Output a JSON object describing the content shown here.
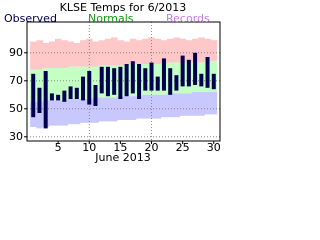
{
  "chart_data": {
    "type": "range",
    "title": "KLSE Temps for 6/2013",
    "x_label": "June 2013",
    "x": [
      1,
      2,
      3,
      4,
      5,
      6,
      7,
      8,
      9,
      10,
      11,
      12,
      13,
      14,
      15,
      16,
      17,
      18,
      19,
      20,
      21,
      22,
      23,
      24,
      25,
      26,
      27,
      28,
      29,
      30
    ],
    "xlim": [
      0,
      31
    ],
    "xticks": [
      5,
      10,
      15,
      20,
      25,
      30
    ],
    "xgrid": [
      10,
      20
    ],
    "ylim": [
      27,
      112
    ],
    "yticks": [
      30,
      50,
      70,
      90
    ],
    "grid": true,
    "series": [
      {
        "name": "Records",
        "legend_color": "#c080e0",
        "color": "#ffc8c8",
        "low_color": "#c8c8ff",
        "high": [
          98,
          99,
          97,
          98,
          100,
          99,
          98,
          97,
          99,
          100,
          98,
          99,
          100,
          101,
          99,
          98,
          100,
          99,
          100,
          101,
          100,
          99,
          100,
          101,
          100,
          99,
          100,
          101,
          100,
          99
        ],
        "low": [
          37,
          36,
          37,
          38,
          38,
          38,
          39,
          39,
          40,
          40,
          40,
          41,
          41,
          41,
          42,
          42,
          42,
          43,
          43,
          43,
          43,
          44,
          44,
          44,
          45,
          45,
          45,
          45,
          46,
          46
        ]
      },
      {
        "name": "Normals",
        "legend_color": "#1a9a1a",
        "color": "#c4ffc4",
        "high": [
          78,
          78,
          79,
          79,
          79,
          79,
          80,
          80,
          80,
          80,
          80,
          81,
          81,
          81,
          81,
          81,
          82,
          82,
          82,
          82,
          82,
          82,
          83,
          83,
          83,
          83,
          83,
          83,
          84,
          84
        ],
        "low": [
          55,
          55,
          56,
          56,
          56,
          56,
          57,
          57,
          57,
          57,
          58,
          58,
          58,
          58,
          59,
          59,
          59,
          59,
          60,
          60,
          60,
          60,
          61,
          61,
          61,
          61,
          62,
          62,
          62,
          62
        ]
      },
      {
        "name": "Observed",
        "legend_color": "#000050",
        "color": "#000050",
        "high": [
          75,
          65,
          77,
          61,
          60,
          63,
          66,
          65,
          73,
          77,
          67,
          80,
          80,
          79,
          80,
          82,
          84,
          82,
          79,
          83,
          73,
          86,
          79,
          74,
          88,
          85,
          90,
          75,
          87,
          75
        ],
        "low": [
          44,
          47,
          36,
          56,
          56,
          55,
          57,
          57,
          56,
          53,
          52,
          61,
          59,
          60,
          57,
          59,
          61,
          57,
          63,
          63,
          63,
          63,
          60,
          63,
          66,
          66,
          67,
          66,
          65,
          64
        ]
      }
    ]
  }
}
